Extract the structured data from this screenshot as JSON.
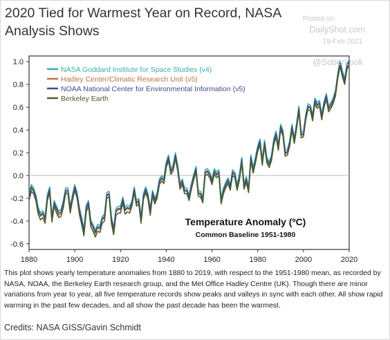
{
  "headline": "2020 Tied for Warmest Year on Record, NASA Analysis Shows",
  "watermark": {
    "posted_on": "Posted on",
    "site": "DailyShot.com",
    "date": "19-Feb-2021",
    "handle": "@SoberLook"
  },
  "caption": "This plot shows yearly temperature anomalies from 1880 to 2019, with respect to the 1951-1980 mean, as recorded by NASA, NOAA, the Berkeley Earth research group, and the Met Office Hadley Centre (UK). Though there are minor variations from year to year, all five temperature records show peaks and valleys in sync with each other. All show rapid warming in the past few decades, and all show the past decade has been the warmest.",
  "credits": "Credits: NASA GISS/Gavin Schmidt",
  "chart_data": {
    "type": "line",
    "title": "",
    "annotation_title": "Temperature Anomaly (ºC)",
    "annotation_subtitle": "Common Baseline 1951-1980",
    "xlabel": "",
    "ylabel": "",
    "xlim": [
      1880,
      2020
    ],
    "ylim": [
      -0.65,
      1.05
    ],
    "x_ticks": [
      1880,
      1900,
      1920,
      1940,
      1960,
      1980,
      2000,
      2020
    ],
    "y_ticks": [
      -0.6,
      -0.4,
      -0.2,
      0.0,
      0.2,
      0.4,
      0.6,
      0.8,
      1.0
    ],
    "y_tick_labels": [
      "-0.6",
      "-0.4",
      "-0.2",
      "0.0",
      "0.2",
      "0.4",
      "0.6",
      "0.8",
      "1.0"
    ],
    "zero_line": true,
    "legend_position": "top-left",
    "x": [
      1880,
      1881,
      1882,
      1883,
      1884,
      1885,
      1886,
      1887,
      1888,
      1889,
      1890,
      1891,
      1892,
      1893,
      1894,
      1895,
      1896,
      1897,
      1898,
      1899,
      1900,
      1901,
      1902,
      1903,
      1904,
      1905,
      1906,
      1907,
      1908,
      1909,
      1910,
      1911,
      1912,
      1913,
      1914,
      1915,
      1916,
      1917,
      1918,
      1919,
      1920,
      1921,
      1922,
      1923,
      1924,
      1925,
      1926,
      1927,
      1928,
      1929,
      1930,
      1931,
      1932,
      1933,
      1934,
      1935,
      1936,
      1937,
      1938,
      1939,
      1940,
      1941,
      1942,
      1943,
      1944,
      1945,
      1946,
      1947,
      1948,
      1949,
      1950,
      1951,
      1952,
      1953,
      1954,
      1955,
      1956,
      1957,
      1958,
      1959,
      1960,
      1961,
      1962,
      1963,
      1964,
      1965,
      1966,
      1967,
      1968,
      1969,
      1970,
      1971,
      1972,
      1973,
      1974,
      1975,
      1976,
      1977,
      1978,
      1979,
      1980,
      1981,
      1982,
      1983,
      1984,
      1985,
      1986,
      1987,
      1988,
      1989,
      1990,
      1991,
      1992,
      1993,
      1994,
      1995,
      1996,
      1997,
      1998,
      1999,
      2000,
      2001,
      2002,
      2003,
      2004,
      2005,
      2006,
      2007,
      2008,
      2009,
      2010,
      2011,
      2012,
      2013,
      2014,
      2015,
      2016,
      2017,
      2018,
      2019,
      2020
    ],
    "series": [
      {
        "name": "NASA Goddard Institute for Space Studies (v4)",
        "color": "#3aada5",
        "values": [
          -0.16,
          -0.08,
          -0.11,
          -0.17,
          -0.28,
          -0.33,
          -0.31,
          -0.36,
          -0.17,
          -0.1,
          -0.35,
          -0.22,
          -0.27,
          -0.31,
          -0.3,
          -0.22,
          -0.11,
          -0.11,
          -0.27,
          -0.17,
          -0.08,
          -0.15,
          -0.28,
          -0.37,
          -0.47,
          -0.26,
          -0.22,
          -0.39,
          -0.43,
          -0.48,
          -0.43,
          -0.44,
          -0.36,
          -0.34,
          -0.15,
          -0.14,
          -0.36,
          -0.46,
          -0.29,
          -0.27,
          -0.27,
          -0.19,
          -0.28,
          -0.26,
          -0.27,
          -0.22,
          -0.1,
          -0.22,
          -0.2,
          -0.36,
          -0.16,
          -0.1,
          -0.16,
          -0.29,
          -0.13,
          -0.2,
          -0.15,
          -0.03,
          0.0,
          -0.02,
          0.12,
          0.18,
          0.06,
          0.09,
          0.2,
          0.09,
          -0.07,
          -0.03,
          -0.11,
          -0.11,
          -0.17,
          -0.07,
          0.01,
          0.08,
          -0.13,
          -0.14,
          -0.19,
          0.05,
          0.06,
          0.03,
          -0.03,
          0.06,
          0.03,
          0.05,
          -0.2,
          -0.11,
          -0.06,
          -0.02,
          -0.08,
          0.05,
          0.03,
          -0.08,
          0.01,
          0.16,
          -0.07,
          -0.01,
          -0.1,
          0.18,
          0.07,
          0.16,
          0.26,
          0.32,
          0.14,
          0.31,
          0.16,
          0.12,
          0.18,
          0.32,
          0.39,
          0.27,
          0.45,
          0.4,
          0.22,
          0.23,
          0.31,
          0.45,
          0.33,
          0.46,
          0.61,
          0.38,
          0.39,
          0.54,
          0.63,
          0.62,
          0.53,
          0.68,
          0.64,
          0.66,
          0.54,
          0.65,
          0.72,
          0.61,
          0.64,
          0.68,
          0.75,
          0.9,
          1.01,
          0.92,
          0.85,
          0.98,
          1.02
        ]
      },
      {
        "name": "Hadley Center/Climatic Research Unit (v5)",
        "color": "#b8733f",
        "values": [
          -0.2,
          -0.12,
          -0.14,
          -0.2,
          -0.31,
          -0.36,
          -0.34,
          -0.39,
          -0.2,
          -0.14,
          -0.38,
          -0.25,
          -0.3,
          -0.35,
          -0.33,
          -0.26,
          -0.15,
          -0.14,
          -0.3,
          -0.21,
          -0.11,
          -0.18,
          -0.31,
          -0.4,
          -0.5,
          -0.29,
          -0.25,
          -0.42,
          -0.46,
          -0.51,
          -0.46,
          -0.47,
          -0.39,
          -0.37,
          -0.18,
          -0.17,
          -0.39,
          -0.49,
          -0.32,
          -0.3,
          -0.3,
          -0.22,
          -0.31,
          -0.29,
          -0.3,
          -0.25,
          -0.13,
          -0.25,
          -0.23,
          -0.39,
          -0.19,
          -0.13,
          -0.19,
          -0.32,
          -0.16,
          -0.23,
          -0.18,
          -0.06,
          -0.03,
          -0.05,
          0.09,
          0.15,
          0.03,
          0.06,
          0.17,
          0.06,
          -0.1,
          -0.06,
          -0.14,
          -0.14,
          -0.2,
          -0.1,
          -0.02,
          0.05,
          -0.16,
          -0.17,
          -0.22,
          0.02,
          0.03,
          0.0,
          -0.06,
          0.03,
          0.0,
          0.02,
          -0.23,
          -0.14,
          -0.09,
          -0.05,
          -0.11,
          0.02,
          0.0,
          -0.11,
          -0.02,
          0.13,
          -0.1,
          -0.04,
          -0.13,
          0.15,
          0.04,
          0.13,
          0.23,
          0.29,
          0.11,
          0.28,
          0.13,
          0.09,
          0.15,
          0.29,
          0.36,
          0.24,
          0.42,
          0.37,
          0.19,
          0.2,
          0.28,
          0.42,
          0.3,
          0.43,
          0.58,
          0.35,
          0.36,
          0.51,
          0.6,
          0.59,
          0.5,
          0.65,
          0.61,
          0.63,
          0.51,
          0.62,
          0.69,
          0.58,
          0.61,
          0.65,
          0.72,
          0.87,
          0.98,
          0.89,
          0.82,
          0.95,
          0.99
        ]
      },
      {
        "name": "NOAA National Center for Environmental Information (v5)",
        "color": "#3f4a8c",
        "values": [
          -0.18,
          -0.1,
          -0.13,
          -0.19,
          -0.3,
          -0.35,
          -0.33,
          -0.38,
          -0.19,
          -0.12,
          -0.37,
          -0.24,
          -0.29,
          -0.33,
          -0.32,
          -0.24,
          -0.13,
          -0.13,
          -0.29,
          -0.19,
          -0.1,
          -0.17,
          -0.3,
          -0.39,
          -0.49,
          -0.28,
          -0.24,
          -0.41,
          -0.45,
          -0.5,
          -0.45,
          -0.46,
          -0.38,
          -0.36,
          -0.17,
          -0.16,
          -0.38,
          -0.48,
          -0.31,
          -0.29,
          -0.29,
          -0.21,
          -0.3,
          -0.28,
          -0.29,
          -0.24,
          -0.12,
          -0.24,
          -0.22,
          -0.38,
          -0.18,
          -0.12,
          -0.18,
          -0.31,
          -0.15,
          -0.22,
          -0.17,
          -0.05,
          -0.02,
          -0.04,
          0.1,
          0.16,
          0.04,
          0.07,
          0.18,
          0.07,
          -0.09,
          -0.05,
          -0.13,
          -0.13,
          -0.19,
          -0.09,
          -0.01,
          0.06,
          -0.15,
          -0.16,
          -0.21,
          0.03,
          0.04,
          0.01,
          -0.05,
          0.04,
          0.01,
          0.03,
          -0.22,
          -0.13,
          -0.08,
          -0.04,
          -0.1,
          0.03,
          0.01,
          -0.1,
          -0.01,
          0.14,
          -0.09,
          -0.03,
          -0.12,
          0.16,
          0.05,
          0.14,
          0.24,
          0.3,
          0.12,
          0.29,
          0.14,
          0.1,
          0.16,
          0.3,
          0.37,
          0.25,
          0.43,
          0.38,
          0.2,
          0.21,
          0.29,
          0.43,
          0.31,
          0.44,
          0.59,
          0.36,
          0.37,
          0.52,
          0.61,
          0.6,
          0.51,
          0.66,
          0.62,
          0.64,
          0.52,
          0.63,
          0.7,
          0.59,
          0.62,
          0.66,
          0.73,
          0.88,
          0.99,
          0.9,
          0.83,
          0.96,
          1.0
        ]
      },
      {
        "name": "Berkeley Earth",
        "color": "#4a5e2b",
        "values": [
          -0.22,
          -0.14,
          -0.16,
          -0.22,
          -0.34,
          -0.39,
          -0.37,
          -0.42,
          -0.22,
          -0.15,
          -0.41,
          -0.27,
          -0.33,
          -0.37,
          -0.36,
          -0.28,
          -0.16,
          -0.16,
          -0.33,
          -0.22,
          -0.13,
          -0.2,
          -0.34,
          -0.43,
          -0.53,
          -0.32,
          -0.27,
          -0.45,
          -0.49,
          -0.54,
          -0.49,
          -0.5,
          -0.42,
          -0.4,
          -0.2,
          -0.19,
          -0.42,
          -0.52,
          -0.35,
          -0.33,
          -0.33,
          -0.24,
          -0.34,
          -0.32,
          -0.33,
          -0.27,
          -0.15,
          -0.27,
          -0.25,
          -0.42,
          -0.21,
          -0.15,
          -0.21,
          -0.35,
          -0.18,
          -0.25,
          -0.2,
          -0.08,
          -0.05,
          -0.07,
          0.07,
          0.13,
          0.01,
          0.04,
          0.15,
          0.04,
          -0.12,
          -0.08,
          -0.16,
          -0.16,
          -0.22,
          -0.12,
          -0.04,
          0.03,
          -0.18,
          -0.19,
          -0.24,
          0.0,
          0.01,
          -0.02,
          -0.08,
          0.01,
          -0.02,
          0.0,
          -0.25,
          -0.16,
          -0.11,
          -0.07,
          -0.13,
          0.0,
          -0.02,
          -0.13,
          -0.04,
          0.11,
          -0.12,
          -0.06,
          -0.15,
          0.13,
          0.02,
          0.11,
          0.21,
          0.27,
          0.09,
          0.26,
          0.11,
          0.07,
          0.13,
          0.27,
          0.34,
          0.22,
          0.4,
          0.35,
          0.17,
          0.18,
          0.26,
          0.4,
          0.28,
          0.41,
          0.56,
          0.33,
          0.34,
          0.49,
          0.58,
          0.57,
          0.48,
          0.63,
          0.59,
          0.61,
          0.49,
          0.6,
          0.67,
          0.56,
          0.59,
          0.63,
          0.7,
          0.85,
          0.96,
          0.87,
          0.8,
          0.93,
          0.97
        ]
      }
    ]
  }
}
